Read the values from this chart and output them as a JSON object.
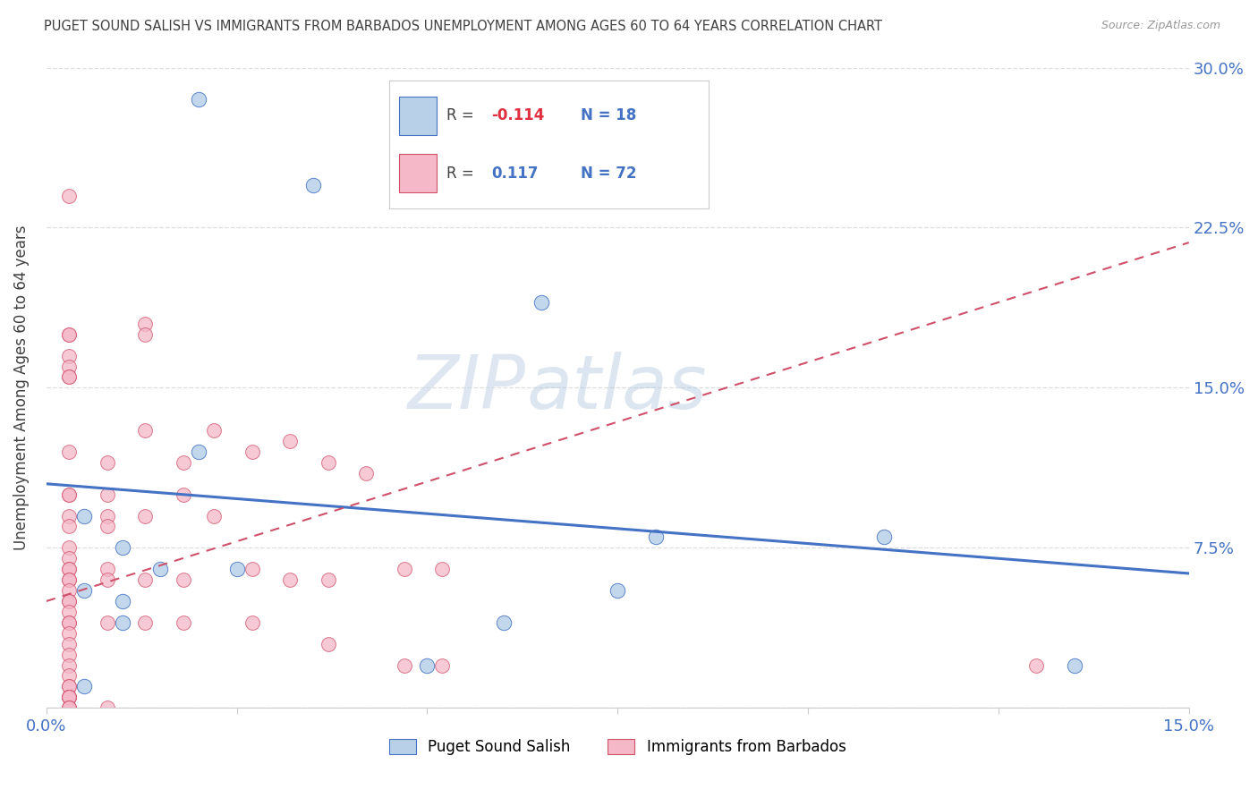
{
  "title": "PUGET SOUND SALISH VS IMMIGRANTS FROM BARBADOS UNEMPLOYMENT AMONG AGES 60 TO 64 YEARS CORRELATION CHART",
  "source": "Source: ZipAtlas.com",
  "xlabel_blue": "Puget Sound Salish",
  "xlabel_pink": "Immigrants from Barbados",
  "ylabel": "Unemployment Among Ages 60 to 64 years",
  "xlim": [
    0,
    0.15
  ],
  "ylim": [
    0,
    0.3
  ],
  "xticks": [
    0.0,
    0.025,
    0.05,
    0.075,
    0.1,
    0.125,
    0.15
  ],
  "xtick_labels": [
    "0.0%",
    "",
    "",
    "",
    "",
    "",
    "15.0%"
  ],
  "yticks": [
    0.0,
    0.075,
    0.15,
    0.225,
    0.3
  ],
  "ytick_labels": [
    "",
    "7.5%",
    "15.0%",
    "22.5%",
    "30.0%"
  ],
  "blue_R": "-0.114",
  "blue_N": "18",
  "pink_R": "0.117",
  "pink_N": "72",
  "blue_color": "#b8d0e8",
  "pink_color": "#f5b8c8",
  "blue_line_color": "#4472c4",
  "pink_line_color": "#d0506a",
  "watermark_zip": "ZIP",
  "watermark_atlas": "atlas",
  "blue_scatter_x": [
    0.02,
    0.035,
    0.065,
    0.02,
    0.005,
    0.01,
    0.015,
    0.025,
    0.005,
    0.01,
    0.01,
    0.005,
    0.08,
    0.11,
    0.135,
    0.075,
    0.06,
    0.05
  ],
  "blue_scatter_y": [
    0.285,
    0.245,
    0.19,
    0.12,
    0.09,
    0.075,
    0.065,
    0.065,
    0.055,
    0.05,
    0.04,
    0.01,
    0.08,
    0.08,
    0.02,
    0.055,
    0.04,
    0.02
  ],
  "pink_scatter_x": [
    0.003,
    0.003,
    0.003,
    0.003,
    0.003,
    0.003,
    0.003,
    0.003,
    0.003,
    0.003,
    0.003,
    0.003,
    0.003,
    0.003,
    0.003,
    0.003,
    0.003,
    0.003,
    0.003,
    0.003,
    0.003,
    0.003,
    0.003,
    0.003,
    0.003,
    0.003,
    0.003,
    0.003,
    0.003,
    0.003,
    0.003,
    0.003,
    0.003,
    0.003,
    0.003,
    0.003,
    0.003,
    0.003,
    0.008,
    0.008,
    0.008,
    0.008,
    0.008,
    0.008,
    0.008,
    0.008,
    0.013,
    0.013,
    0.013,
    0.013,
    0.013,
    0.013,
    0.018,
    0.018,
    0.018,
    0.018,
    0.022,
    0.022,
    0.027,
    0.027,
    0.027,
    0.032,
    0.032,
    0.037,
    0.037,
    0.037,
    0.042,
    0.047,
    0.047,
    0.052,
    0.052,
    0.13
  ],
  "pink_scatter_y": [
    0.24,
    0.175,
    0.175,
    0.165,
    0.16,
    0.155,
    0.155,
    0.12,
    0.1,
    0.1,
    0.09,
    0.085,
    0.075,
    0.07,
    0.065,
    0.065,
    0.06,
    0.06,
    0.055,
    0.05,
    0.05,
    0.045,
    0.04,
    0.04,
    0.035,
    0.03,
    0.025,
    0.02,
    0.015,
    0.01,
    0.01,
    0.005,
    0.005,
    0.005,
    0.005,
    0.0,
    0.0,
    0.0,
    0.115,
    0.1,
    0.09,
    0.085,
    0.065,
    0.06,
    0.04,
    0.0,
    0.18,
    0.175,
    0.13,
    0.09,
    0.06,
    0.04,
    0.115,
    0.1,
    0.06,
    0.04,
    0.13,
    0.09,
    0.12,
    0.065,
    0.04,
    0.125,
    0.06,
    0.115,
    0.06,
    0.03,
    0.11,
    0.065,
    0.02,
    0.065,
    0.02,
    0.02
  ],
  "blue_trend_x": [
    0.0,
    0.15
  ],
  "blue_trend_y": [
    0.105,
    0.063
  ],
  "pink_trend_x": [
    0.0,
    0.15
  ],
  "pink_trend_y": [
    0.05,
    0.218
  ],
  "grid_color": "#dddddd",
  "axis_color": "#4472c4",
  "text_color_dark": "#404040"
}
